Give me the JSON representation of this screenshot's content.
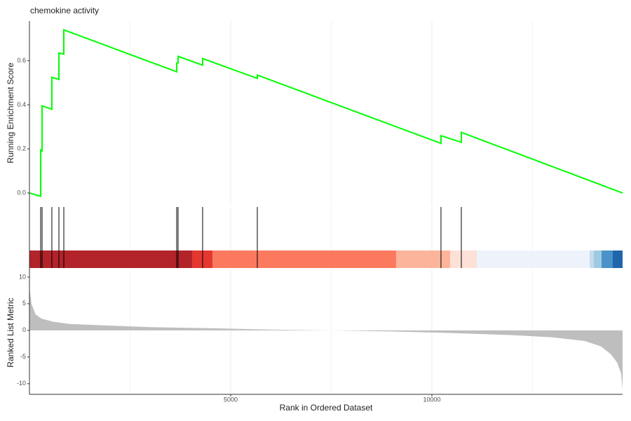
{
  "chart_data": {
    "type": "gsea",
    "title": "chemokine activity",
    "ylabel": "Running Enrichment Score",
    "ylabel_metric": "Ranked List Metric",
    "xlabel": "Rank in Ordered Dataset",
    "xlim": [
      0,
      14739
    ],
    "xticks": [
      5000,
      10000
    ],
    "xminor": [
      2500,
      7500,
      12500
    ],
    "ylim": [
      -0.054,
      0.78
    ],
    "yticks": [
      {
        "value": 0,
        "label": "0.0"
      },
      {
        "value": 0.2,
        "label": "0.2"
      },
      {
        "value": 0.4,
        "label": "0.4"
      },
      {
        "value": 0.6,
        "label": "0.6"
      }
    ],
    "running_score": {
      "color": "#00ff00",
      "x": [
        0,
        279,
        279,
        314,
        314,
        557,
        557,
        732,
        732,
        854,
        854,
        3659,
        3659,
        3693,
        3693,
        4303,
        4303,
        5662,
        5662,
        10226,
        10226,
        10732,
        10732,
        14739
      ],
      "values": [
        0,
        -0.015,
        0.195,
        0.19,
        0.395,
        0.38,
        0.525,
        0.515,
        0.635,
        0.63,
        0.74,
        0.55,
        0.59,
        0.59,
        0.62,
        0.58,
        0.61,
        0.52,
        0.535,
        0.225,
        0.26,
        0.23,
        0.275,
        0
      ]
    },
    "hits": [
      279,
      314,
      557,
      732,
      854,
      3659,
      3693,
      4303,
      5662,
      10226,
      10732
    ],
    "band": [
      {
        "start": 0,
        "end": 4042,
        "color": "#b2232a"
      },
      {
        "start": 4042,
        "end": 4547,
        "color": "#e3372f"
      },
      {
        "start": 4547,
        "end": 9111,
        "color": "#fb7a5f"
      },
      {
        "start": 9111,
        "end": 10453,
        "color": "#fcb49a"
      },
      {
        "start": 10453,
        "end": 11115,
        "color": "#fde1d6"
      },
      {
        "start": 11115,
        "end": 13920,
        "color": "#eef3fb"
      },
      {
        "start": 13920,
        "end": 14024,
        "color": "#c6dbef"
      },
      {
        "start": 14024,
        "end": 14216,
        "color": "#9ecae1"
      },
      {
        "start": 14216,
        "end": 14495,
        "color": "#4a93c8"
      },
      {
        "start": 14495,
        "end": 14739,
        "color": "#2166ac"
      }
    ],
    "metric": {
      "color": "#bebebe",
      "ylim": [
        -12,
        11.3
      ],
      "yticks": [
        -10,
        -5,
        0,
        5,
        10
      ],
      "x": [
        0,
        50,
        150,
        300,
        600,
        1000,
        2000,
        3000,
        4500,
        6000,
        7500,
        9000,
        10500,
        12000,
        13000,
        13800,
        14200,
        14450,
        14600,
        14700,
        14739
      ],
      "values": [
        8,
        5,
        3,
        2.2,
        1.6,
        1.2,
        0.9,
        0.6,
        0.4,
        0.15,
        0,
        -0.2,
        -0.5,
        -0.9,
        -1.3,
        -2,
        -3,
        -4.5,
        -6,
        -8,
        -11
      ]
    }
  }
}
